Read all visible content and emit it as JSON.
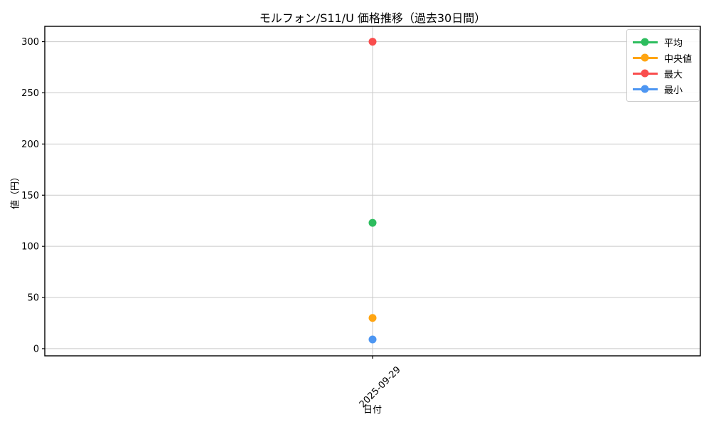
{
  "figure": {
    "title": "モルフォン/S11/U 価格推移（過去30日間）"
  },
  "chart_data": {
    "type": "line",
    "title": "モルフォン/S11/U 価格推移（過去30日間）",
    "xlabel": "日付",
    "ylabel": "値（円）",
    "categories": [
      "2025-09-29"
    ],
    "series": [
      {
        "key": "mean",
        "name": "平均",
        "values": [
          123
        ],
        "color": "#2dbd5e"
      },
      {
        "key": "median",
        "name": "中央値",
        "values": [
          30
        ],
        "color": "#ffa512"
      },
      {
        "key": "max",
        "name": "最大",
        "values": [
          300
        ],
        "color": "#f94d4d"
      },
      {
        "key": "min",
        "name": "最小",
        "values": [
          9
        ],
        "color": "#4d96f2"
      }
    ],
    "yticks": [
      0,
      50,
      100,
      150,
      200,
      250,
      300
    ],
    "ylim": [
      -7,
      315
    ],
    "grid": true,
    "legend_position": "upper right",
    "marker": "circle"
  },
  "colors": {
    "background": "#ffffff",
    "grid": "#c9c9c9",
    "spine": "#000000",
    "legend_border": "#cccccc"
  }
}
